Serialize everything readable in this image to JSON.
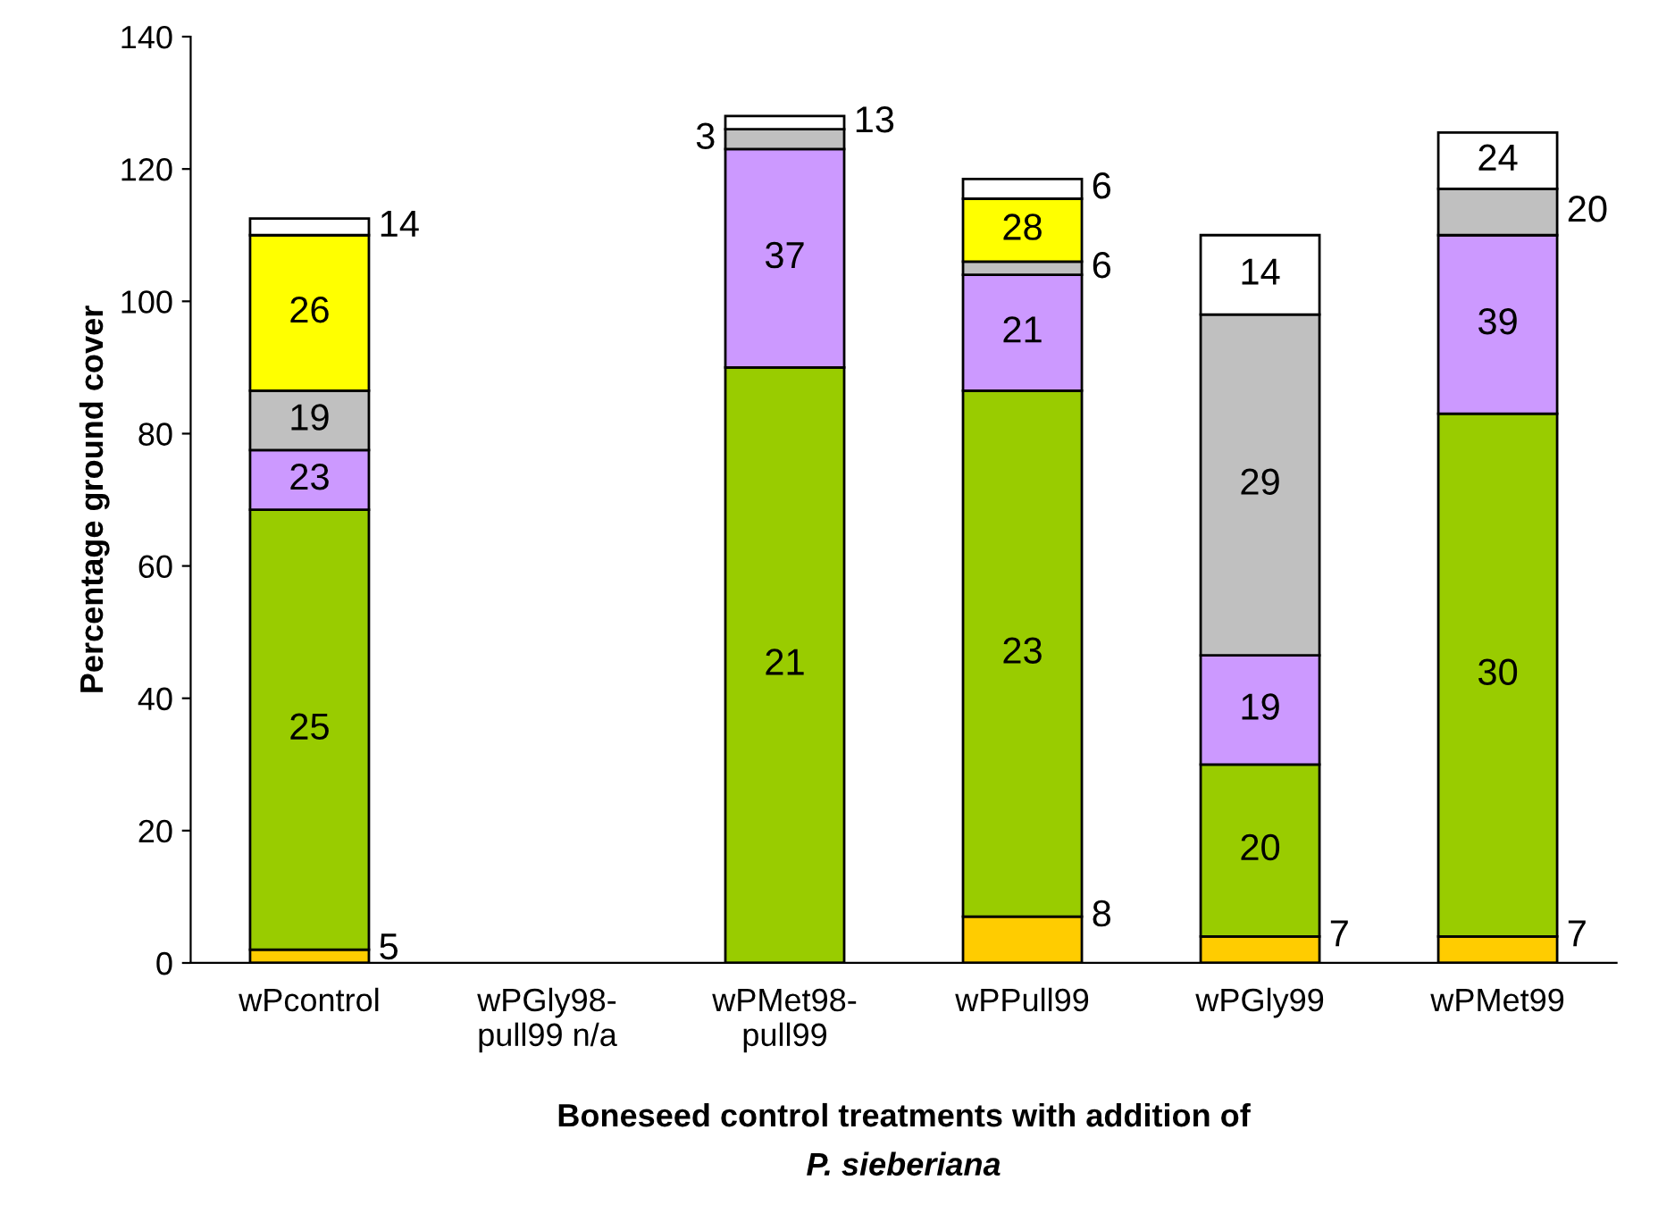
{
  "chart_data": {
    "type": "bar",
    "stacked": true,
    "ylabel": "Percentage ground cover",
    "xlabel": "Boneseed control treatments with addition of\nP. sieberiana",
    "categories": [
      "wPcontrol",
      "wPGly98-\npull99 n/a",
      "wPMet98-\npull99",
      "wPPull99",
      "wPGly99",
      "wPMet99"
    ],
    "series": [
      {
        "color": "#ffcc00",
        "values": [
          2,
          null,
          null,
          7,
          4,
          4
        ]
      },
      {
        "color": "#99cc00",
        "values": [
          66.5,
          null,
          90,
          79.5,
          26,
          79
        ]
      },
      {
        "color": "#cc99ff",
        "values": [
          9,
          null,
          33,
          17.5,
          16.5,
          27
        ]
      },
      {
        "color": "#c0c0c0",
        "values": [
          9,
          null,
          3,
          2,
          51.5,
          7
        ]
      },
      {
        "color": "#ffff00",
        "values": [
          23.5,
          null,
          null,
          9.5,
          null,
          null
        ]
      },
      {
        "color": "#ffffff",
        "values": [
          2.5,
          null,
          2,
          3,
          12,
          8.5
        ]
      }
    ],
    "annotations": [
      "5",
      "25",
      "23",
      "19",
      "26",
      "14",
      "21",
      "37",
      "3",
      "13",
      "8",
      "23",
      "21",
      "6",
      "28",
      "6",
      "7",
      "20",
      "19",
      "29",
      "14",
      "7",
      "30",
      "39",
      "20",
      "24"
    ],
    "ylim": [
      0,
      140
    ],
    "yticks": [
      0,
      20,
      40,
      60,
      80,
      100,
      120,
      140
    ],
    "grid": false,
    "legend": false
  }
}
